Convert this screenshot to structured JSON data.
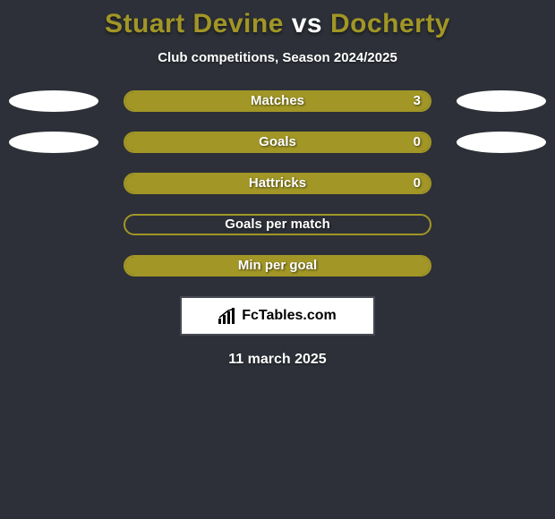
{
  "title": {
    "player1": "Stuart Devine",
    "vs": "vs",
    "player2": "Docherty",
    "player1_color": "#a19626",
    "vs_color": "#ffffff",
    "player2_color": "#a19626"
  },
  "subtitle": "Club competitions, Season 2024/2025",
  "chart": {
    "bar_color": "#a19626",
    "ellipse_left_color": "#ffffff",
    "ellipse_right_color": "#ffffff",
    "rows": [
      {
        "label": "Matches",
        "value_right": "3",
        "fill_pct": 100,
        "show_left_ellipse": true,
        "show_right_ellipse": true,
        "show_value": true
      },
      {
        "label": "Goals",
        "value_right": "0",
        "fill_pct": 100,
        "show_left_ellipse": true,
        "show_right_ellipse": true,
        "show_value": true
      },
      {
        "label": "Hattricks",
        "value_right": "0",
        "fill_pct": 100,
        "show_left_ellipse": false,
        "show_right_ellipse": false,
        "show_value": true
      },
      {
        "label": "Goals per match",
        "value_right": "",
        "fill_pct": 0,
        "show_left_ellipse": false,
        "show_right_ellipse": false,
        "show_value": false
      },
      {
        "label": "Min per goal",
        "value_right": "",
        "fill_pct": 100,
        "show_left_ellipse": false,
        "show_right_ellipse": false,
        "show_value": false
      }
    ]
  },
  "brand": "FcTables.com",
  "date": "11 march 2025",
  "colors": {
    "background": "#2d3038",
    "text": "#ffffff"
  }
}
